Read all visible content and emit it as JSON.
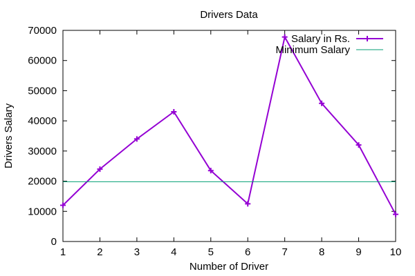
{
  "chart_data": {
    "type": "line",
    "title": "Drivers Data",
    "xlabel": "Number of Driver",
    "ylabel": "Drivers Salary",
    "xlim": [
      1,
      10
    ],
    "ylim": [
      0,
      70000
    ],
    "x_ticks": [
      1,
      2,
      3,
      4,
      5,
      6,
      7,
      8,
      9,
      10
    ],
    "y_ticks": [
      0,
      10000,
      20000,
      30000,
      40000,
      50000,
      60000,
      70000
    ],
    "grid": false,
    "legend_position": "top-right",
    "series": [
      {
        "name": "Salary in Rs.",
        "color": "#9400d3",
        "marker": "plus",
        "x": [
          1,
          2,
          3,
          4,
          5,
          6,
          7,
          8,
          9,
          10
        ],
        "values": [
          12000,
          24000,
          34000,
          43000,
          23500,
          12500,
          67800,
          45800,
          32000,
          9000
        ]
      },
      {
        "name": "Minimum Salary",
        "color": "#009e73",
        "marker": "none",
        "x": [
          1,
          10
        ],
        "values": [
          19800,
          19800
        ]
      }
    ]
  }
}
